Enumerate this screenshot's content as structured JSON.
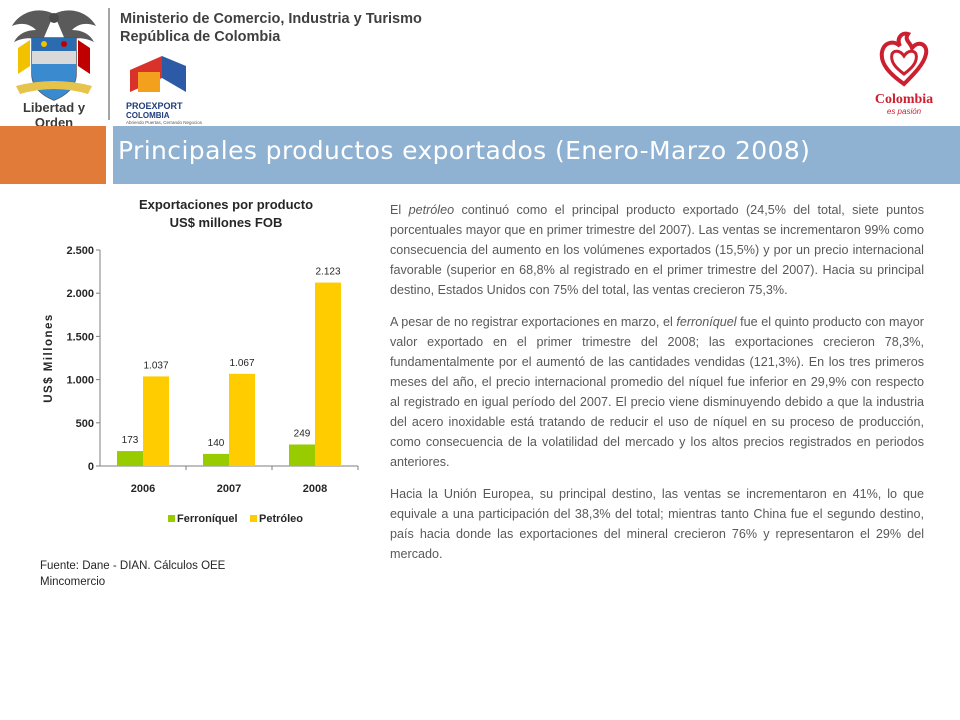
{
  "header": {
    "ministry_line1": "Ministerio de Comercio, Industria y Turismo",
    "ministry_line2": "República de Colombia",
    "coat_motto": "Libertad y Orden",
    "proexport_name": "PROEXPORT",
    "proexport_country": "COLOMBIA",
    "proexport_tagline": "Abriendo Puertas, Cerrando Negocios",
    "brand_name": "Colombia",
    "brand_tagline": "es pasión"
  },
  "title": "Principales productos exportados (Enero-Marzo 2008)",
  "chart_data": {
    "type": "bar",
    "title_line1": "Exportaciones por producto",
    "title_line2": "US$ millones FOB",
    "ylabel": "US$ Millones",
    "categories": [
      "2006",
      "2007",
      "2008"
    ],
    "series": [
      {
        "name": "Ferroníquel",
        "values": [
          173,
          140,
          249
        ],
        "labels": [
          "173",
          "140",
          "249"
        ],
        "color": "#99cc00"
      },
      {
        "name": "Petróleo",
        "values": [
          1037,
          1067,
          2123
        ],
        "labels": [
          "1.037",
          "1.067",
          "2.123"
        ],
        "color": "#ffcc00"
      }
    ],
    "yticks": [
      0,
      500,
      1000,
      1500,
      2000,
      2500
    ],
    "ytick_labels": [
      "0",
      "500",
      "1.000",
      "1.500",
      "2.000",
      "2.500"
    ],
    "ylim": [
      0,
      2500
    ],
    "grid": false,
    "legend_position": "bottom"
  },
  "source": "Fuente: Dane - DIAN. Cálculos OEE Mincomercio",
  "paragraphs": [
    {
      "pre": "El ",
      "em": "petróleo",
      "post": " continuó como el principal producto exportado (24,5% del total, siete puntos porcentuales mayor que en primer trimestre del 2007). Las ventas se incrementaron 99% como consecuencia del aumento en los volúmenes exportados (15,5%) y por un precio internacional favorable (superior en 68,8% al registrado en el primer trimestre del 2007). Hacia su principal destino, Estados Unidos con 75% del total, las ventas crecieron 75,3%."
    },
    {
      "pre": "A pesar de no registrar exportaciones en marzo, el ",
      "em": "ferroníquel",
      "post": " fue el quinto producto con mayor valor exportado en el primer trimestre del 2008; las exportaciones crecieron 78,3%, fundamentalmente por el aumentó de las cantidades vendidas (121,3%). En los tres primeros meses del año, el precio internacional promedio del níquel fue inferior en 29,9% con respecto al registrado en igual período del 2007. El precio viene disminuyendo debido a que  la industria del acero inoxidable está tratando de reducir el uso de níquel en su proceso de producción, como consecuencia de la volatilidad del mercado y los altos precios registrados en periodos anteriores."
    },
    {
      "pre": "Hacia la Unión Europea, su principal destino, las ventas se incrementaron en 41%, lo que equivale a una participación del 38,3% del total; mientras tanto China fue el segundo destino, país hacia donde las exportaciones del mineral crecieron 76% y representaron el 29% del mercado.",
      "em": "",
      "post": ""
    }
  ]
}
